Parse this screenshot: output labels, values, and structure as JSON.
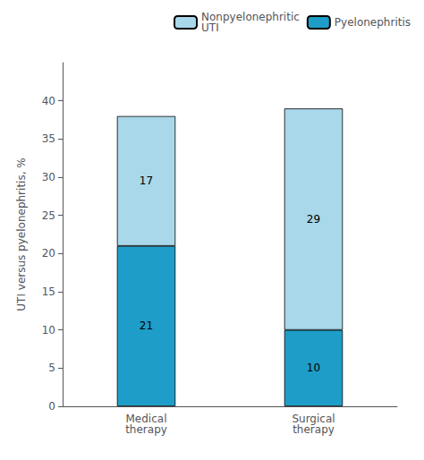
{
  "chart_data": {
    "type": "bar",
    "categories": [
      "Medical\ntherapy",
      "Surgical\ntherapy"
    ],
    "series": [
      {
        "name": "Pyelonephritis",
        "color": "#1e9dc8",
        "values": [
          21,
          10
        ]
      },
      {
        "name": "Nonpyelonephritic\nUTI",
        "color": "#a8d8ea",
        "values": [
          17,
          29
        ]
      }
    ],
    "stacked": true,
    "data_labels": true,
    "ylabel": "UTI versus pyelonephritis, %",
    "ylim": [
      0,
      45
    ],
    "yticks": [
      0,
      5,
      10,
      15,
      20,
      25,
      30,
      35,
      40
    ],
    "grid": false,
    "legend": "upper right"
  }
}
